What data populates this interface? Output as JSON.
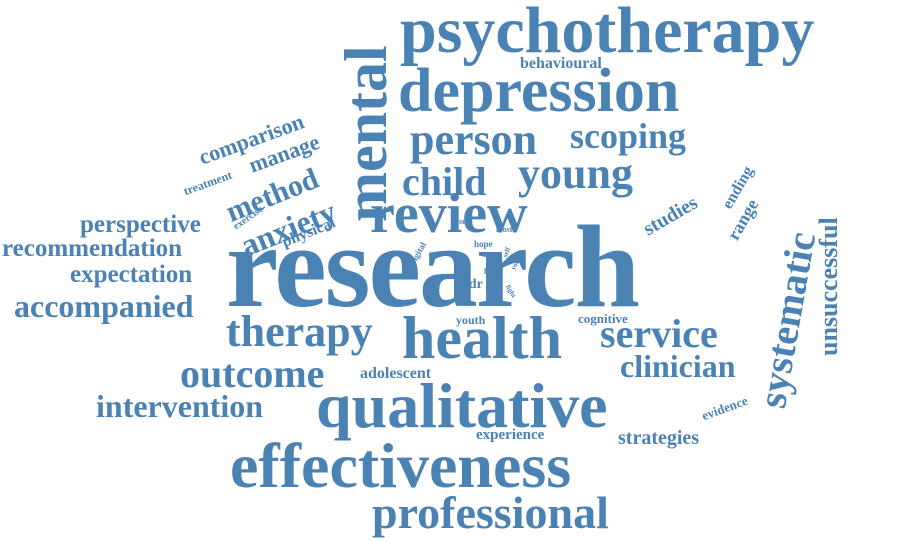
{
  "theme": {
    "word_color": "#4a82b4",
    "background": "#ffffff"
  },
  "words": {
    "psychotherapy": "psychotherapy",
    "behavioural": "behavioural",
    "depression": "depression",
    "mental": "mental",
    "comparison": "comparison",
    "manage": "manage",
    "person": "person",
    "scoping": "scoping",
    "method": "method",
    "treatment": "treatment",
    "anxiety": "anxiety",
    "child": "child",
    "young": "young",
    "ending": "ending",
    "systematic": "systematic",
    "unsuccessful": "unsuccessful",
    "exercise": "exercise",
    "physical": "physical",
    "review": "review",
    "studies": "studies",
    "range": "range",
    "perspective": "perspective",
    "recommendation": "recommendation",
    "result": "result",
    "most": "most",
    "hope": "hope",
    "digital": "digital",
    "self": "self",
    "your": "your",
    "research": "research",
    "expectation": "expectation",
    "hard": "hard",
    "light": "light",
    "addr": "addr",
    "accompanied": "accompanied",
    "youth": "youth",
    "cognitive": "cognitive",
    "therapy": "therapy",
    "health": "health",
    "service": "service",
    "outcome": "outcome",
    "adolescent": "adolescent",
    "clinician": "clinician",
    "intervention": "intervention",
    "qualitative": "qualitative",
    "evidence": "evidence",
    "experience": "experience",
    "strategies": "strategies",
    "effectiveness": "effectiveness",
    "professional": "professional"
  }
}
